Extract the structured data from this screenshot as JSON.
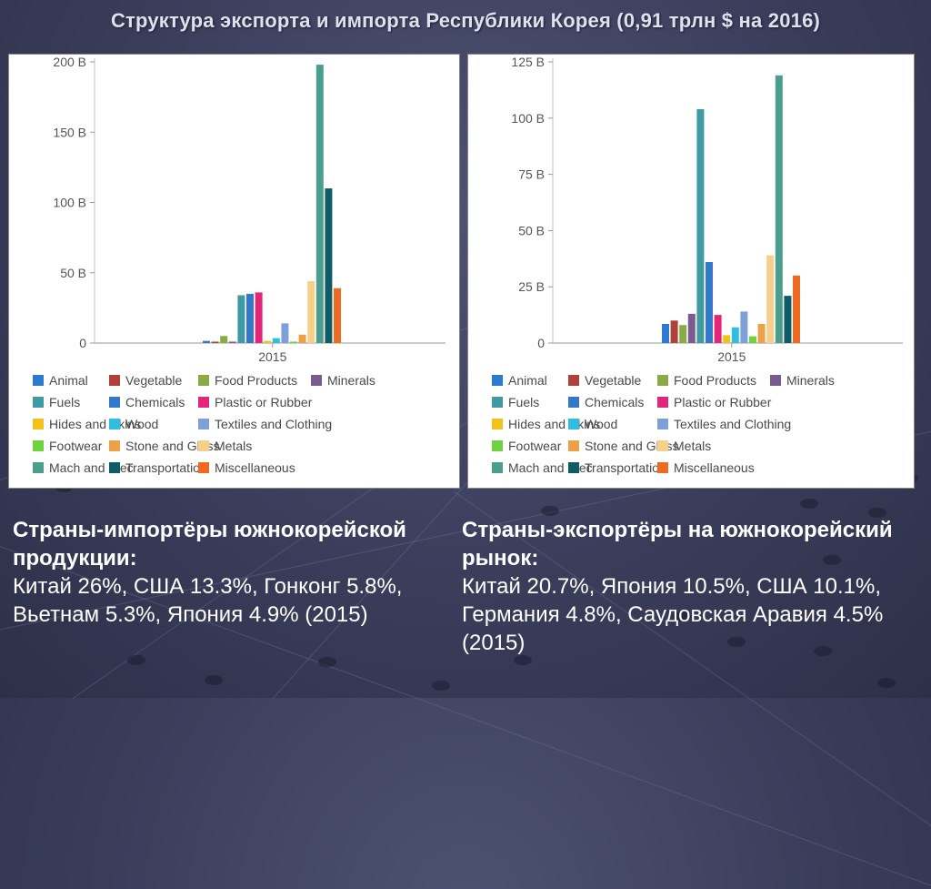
{
  "title": "Структура экспорта и импорта Республики Корея (0,91 трлн $ на 2016)",
  "chart_data": [
    {
      "type": "bar",
      "categories": [
        "2015"
      ],
      "ylim": [
        0,
        200
      ],
      "yticks": [
        0,
        50,
        100,
        150,
        200
      ],
      "ytick_labels": [
        "0",
        "50 B",
        "100 B",
        "150 B",
        "200 B"
      ],
      "series": [
        {
          "name": "Animal",
          "values": [
            1.5
          ]
        },
        {
          "name": "Vegetable",
          "values": [
            1
          ]
        },
        {
          "name": "Food Products",
          "values": [
            5
          ]
        },
        {
          "name": "Minerals",
          "values": [
            1
          ]
        },
        {
          "name": "Fuels",
          "values": [
            34
          ]
        },
        {
          "name": "Chemicals",
          "values": [
            35
          ]
        },
        {
          "name": "Plastic or Rubber",
          "values": [
            36
          ]
        },
        {
          "name": "Hides and Skins",
          "values": [
            1.5
          ]
        },
        {
          "name": "Wood",
          "values": [
            3.5
          ]
        },
        {
          "name": "Textiles and Clothing",
          "values": [
            14
          ]
        },
        {
          "name": "Footwear",
          "values": [
            1
          ]
        },
        {
          "name": "Stone and Glass",
          "values": [
            6
          ]
        },
        {
          "name": "Metals",
          "values": [
            44
          ]
        },
        {
          "name": "Mach and Elec",
          "values": [
            198
          ]
        },
        {
          "name": "Transportation",
          "values": [
            110
          ]
        },
        {
          "name": "Miscellaneous",
          "values": [
            39
          ]
        }
      ],
      "legend": "bottom"
    },
    {
      "type": "bar",
      "categories": [
        "2015"
      ],
      "ylim": [
        0,
        125
      ],
      "yticks": [
        0,
        25,
        50,
        75,
        100,
        125
      ],
      "ytick_labels": [
        "0",
        "25 B",
        "50 B",
        "75 B",
        "100 B",
        "125 B"
      ],
      "series": [
        {
          "name": "Animal",
          "values": [
            8.5
          ]
        },
        {
          "name": "Vegetable",
          "values": [
            10
          ]
        },
        {
          "name": "Food Products",
          "values": [
            8
          ]
        },
        {
          "name": "Minerals",
          "values": [
            13
          ]
        },
        {
          "name": "Fuels",
          "values": [
            104
          ]
        },
        {
          "name": "Chemicals",
          "values": [
            36
          ]
        },
        {
          "name": "Plastic or Rubber",
          "values": [
            12.5
          ]
        },
        {
          "name": "Hides and Skins",
          "values": [
            3.5
          ]
        },
        {
          "name": "Wood",
          "values": [
            7
          ]
        },
        {
          "name": "Textiles and Clothing",
          "values": [
            14
          ]
        },
        {
          "name": "Footwear",
          "values": [
            3
          ]
        },
        {
          "name": "Stone and Glass",
          "values": [
            8.5
          ]
        },
        {
          "name": "Metals",
          "values": [
            39
          ]
        },
        {
          "name": "Mach and Elec",
          "values": [
            119
          ]
        },
        {
          "name": "Transportation",
          "values": [
            21
          ]
        },
        {
          "name": "Miscellaneous",
          "values": [
            30
          ]
        }
      ],
      "legend": "bottom"
    }
  ],
  "colors": [
    "#2a7bd0",
    "#b0413a",
    "#8aaa45",
    "#7b5a8f",
    "#3f9aa4",
    "#3478c8",
    "#e4267a",
    "#f2c21a",
    "#2fbde0",
    "#7f9fd8",
    "#6fd33f",
    "#eca048",
    "#f6cf8a",
    "#4b9e8e",
    "#0e5d66",
    "#ee6a22"
  ],
  "captions": {
    "import": {
      "heading": "Страны-импортёры южнокорейской продукции:",
      "body": "Китай 26%, США 13.3%, Гонконг 5.8%, Вьетнам 5.3%, Япония 4.9% (2015)"
    },
    "export": {
      "heading": "Страны-экспортёры на южнокорейский рынок:",
      "body": "Китай 20.7%, Япония 10.5%, США 10.1%, Германия 4.8%, Саудовская Аравия 4.5% (2015)"
    }
  }
}
